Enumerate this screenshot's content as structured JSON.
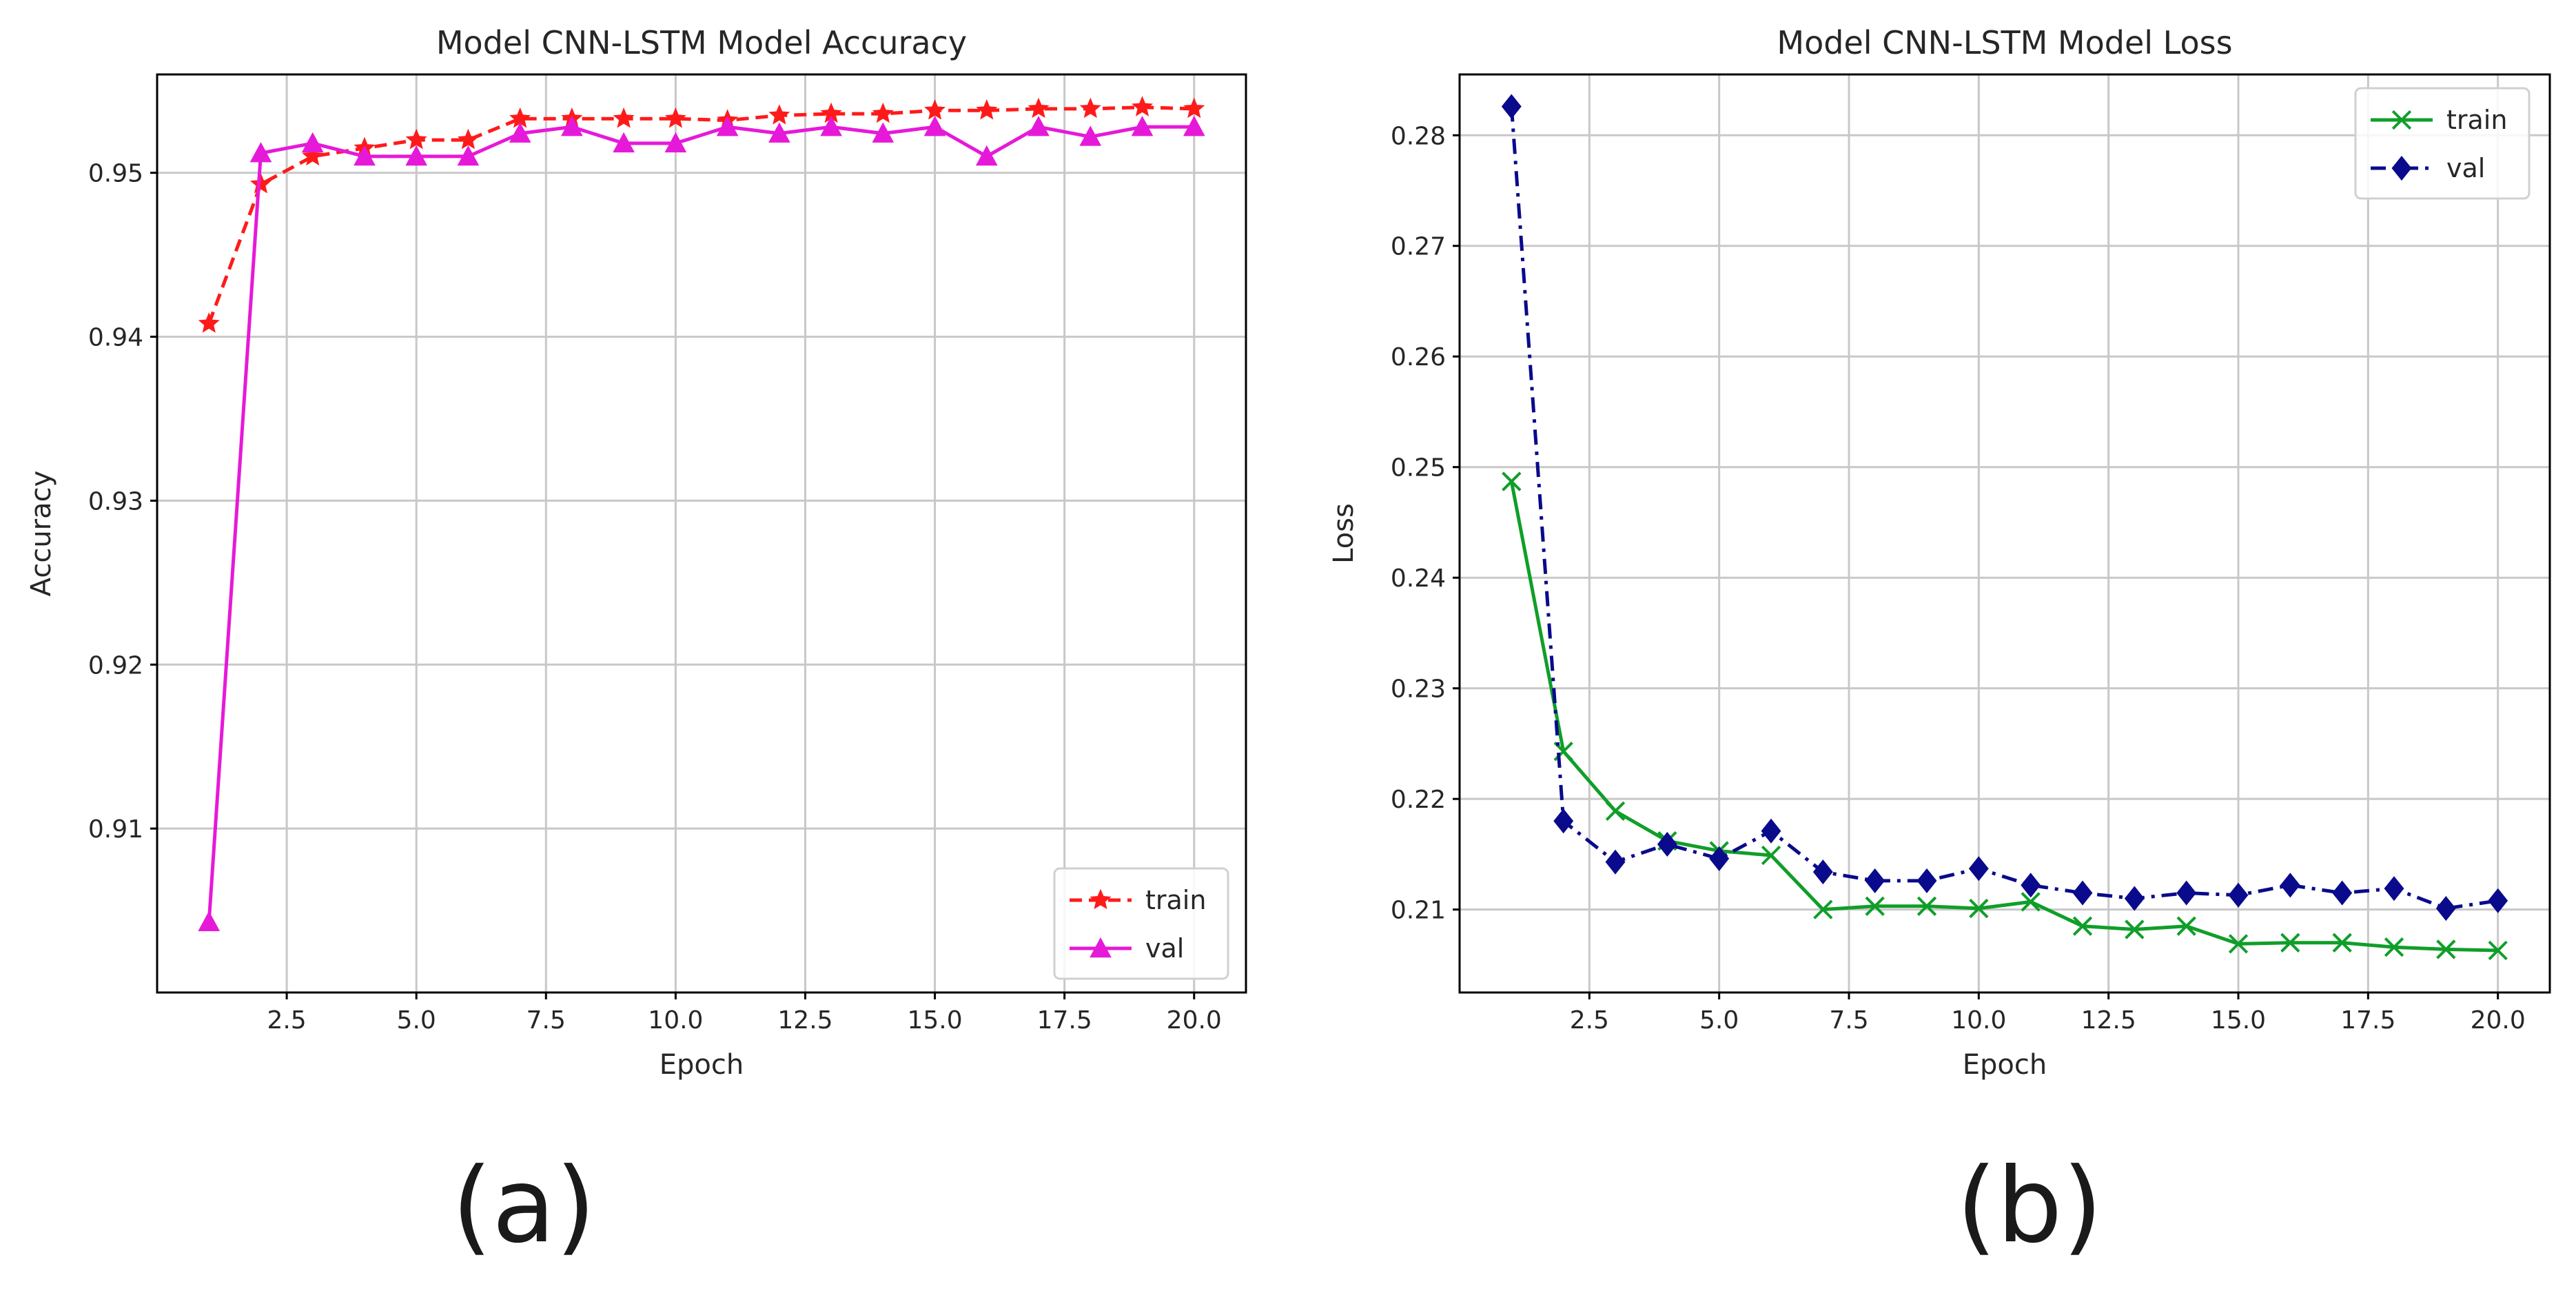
{
  "colors": {
    "train_accuracy": "#ff1a1a",
    "val_accuracy": "#e619d9",
    "train_loss": "#109e29",
    "val_loss": "#0a0a8c",
    "grid": "#c8c8c8",
    "axes": "#000000",
    "text": "#262626"
  },
  "captions": {
    "a": "(a)",
    "b": "(b)"
  },
  "chart_data": [
    {
      "type": "line",
      "title": "Model CNN-LSTM Model Accuracy",
      "xlabel": "Epoch",
      "ylabel": "Accuracy",
      "xlim": [
        0,
        21
      ],
      "ylim": [
        0.9,
        0.956
      ],
      "xticks": [
        2.5,
        5.0,
        7.5,
        10.0,
        12.5,
        15.0,
        17.5,
        20.0
      ],
      "xtick_labels": [
        "2.5",
        "5.0",
        "7.5",
        "10.0",
        "12.5",
        "15.0",
        "17.5",
        "20.0"
      ],
      "yticks": [
        0.91,
        0.92,
        0.93,
        0.94,
        0.95
      ],
      "ytick_labels": [
        "0.91",
        "0.92",
        "0.93",
        "0.94",
        "0.95"
      ],
      "grid": true,
      "legend_position": "lower-right",
      "x": [
        1,
        2,
        3,
        4,
        5,
        6,
        7,
        8,
        9,
        10,
        11,
        12,
        13,
        14,
        15,
        16,
        17,
        18,
        19,
        20
      ],
      "series": [
        {
          "name": "train",
          "color_key": "train_accuracy",
          "line_style": "dashed",
          "marker": "star",
          "values": [
            0.9408,
            0.9493,
            0.951,
            0.9515,
            0.952,
            0.952,
            0.9533,
            0.9533,
            0.9533,
            0.9533,
            0.9532,
            0.9535,
            0.9536,
            0.9536,
            0.9538,
            0.9538,
            0.9539,
            0.9539,
            0.954,
            0.9539
          ]
        },
        {
          "name": "val",
          "color_key": "val_accuracy",
          "line_style": "solid",
          "marker": "triangle-up",
          "values": [
            0.9043,
            0.9512,
            0.9518,
            0.951,
            0.951,
            0.951,
            0.9524,
            0.9528,
            0.9518,
            0.9518,
            0.9528,
            0.9524,
            0.9528,
            0.9524,
            0.9528,
            0.951,
            0.9528,
            0.9522,
            0.9528,
            0.9528
          ]
        }
      ]
    },
    {
      "type": "line",
      "title": "Model CNN-LSTM Model Loss",
      "xlabel": "Epoch",
      "ylabel": "Loss",
      "xlim": [
        0,
        21
      ],
      "ylim": [
        0.2025,
        0.2855
      ],
      "xticks": [
        2.5,
        5.0,
        7.5,
        10.0,
        12.5,
        15.0,
        17.5,
        20.0
      ],
      "xtick_labels": [
        "2.5",
        "5.0",
        "7.5",
        "10.0",
        "12.5",
        "15.0",
        "17.5",
        "20.0"
      ],
      "yticks": [
        0.21,
        0.22,
        0.23,
        0.24,
        0.25,
        0.26,
        0.27,
        0.28
      ],
      "ytick_labels": [
        "0.21",
        "0.22",
        "0.23",
        "0.24",
        "0.25",
        "0.26",
        "0.27",
        "0.28"
      ],
      "grid": true,
      "legend_position": "upper-right",
      "x": [
        1,
        2,
        3,
        4,
        5,
        6,
        7,
        8,
        9,
        10,
        11,
        12,
        13,
        14,
        15,
        16,
        17,
        18,
        19,
        20
      ],
      "series": [
        {
          "name": "train",
          "color_key": "train_loss",
          "line_style": "solid",
          "marker": "x",
          "values": [
            0.2487,
            0.2243,
            0.2189,
            0.2162,
            0.2153,
            0.2149,
            0.21,
            0.2103,
            0.2103,
            0.2101,
            0.2107,
            0.2085,
            0.2082,
            0.2085,
            0.2069,
            0.207,
            0.207,
            0.2066,
            0.2064,
            0.2063
          ]
        },
        {
          "name": "val",
          "color_key": "val_loss",
          "line_style": "dashdot",
          "marker": "diamond",
          "values": [
            0.2826,
            0.218,
            0.2143,
            0.2159,
            0.2146,
            0.2171,
            0.2134,
            0.2126,
            0.2126,
            0.2137,
            0.2122,
            0.2115,
            0.211,
            0.2115,
            0.2113,
            0.2122,
            0.2115,
            0.2119,
            0.2101,
            0.2108
          ]
        }
      ]
    }
  ]
}
